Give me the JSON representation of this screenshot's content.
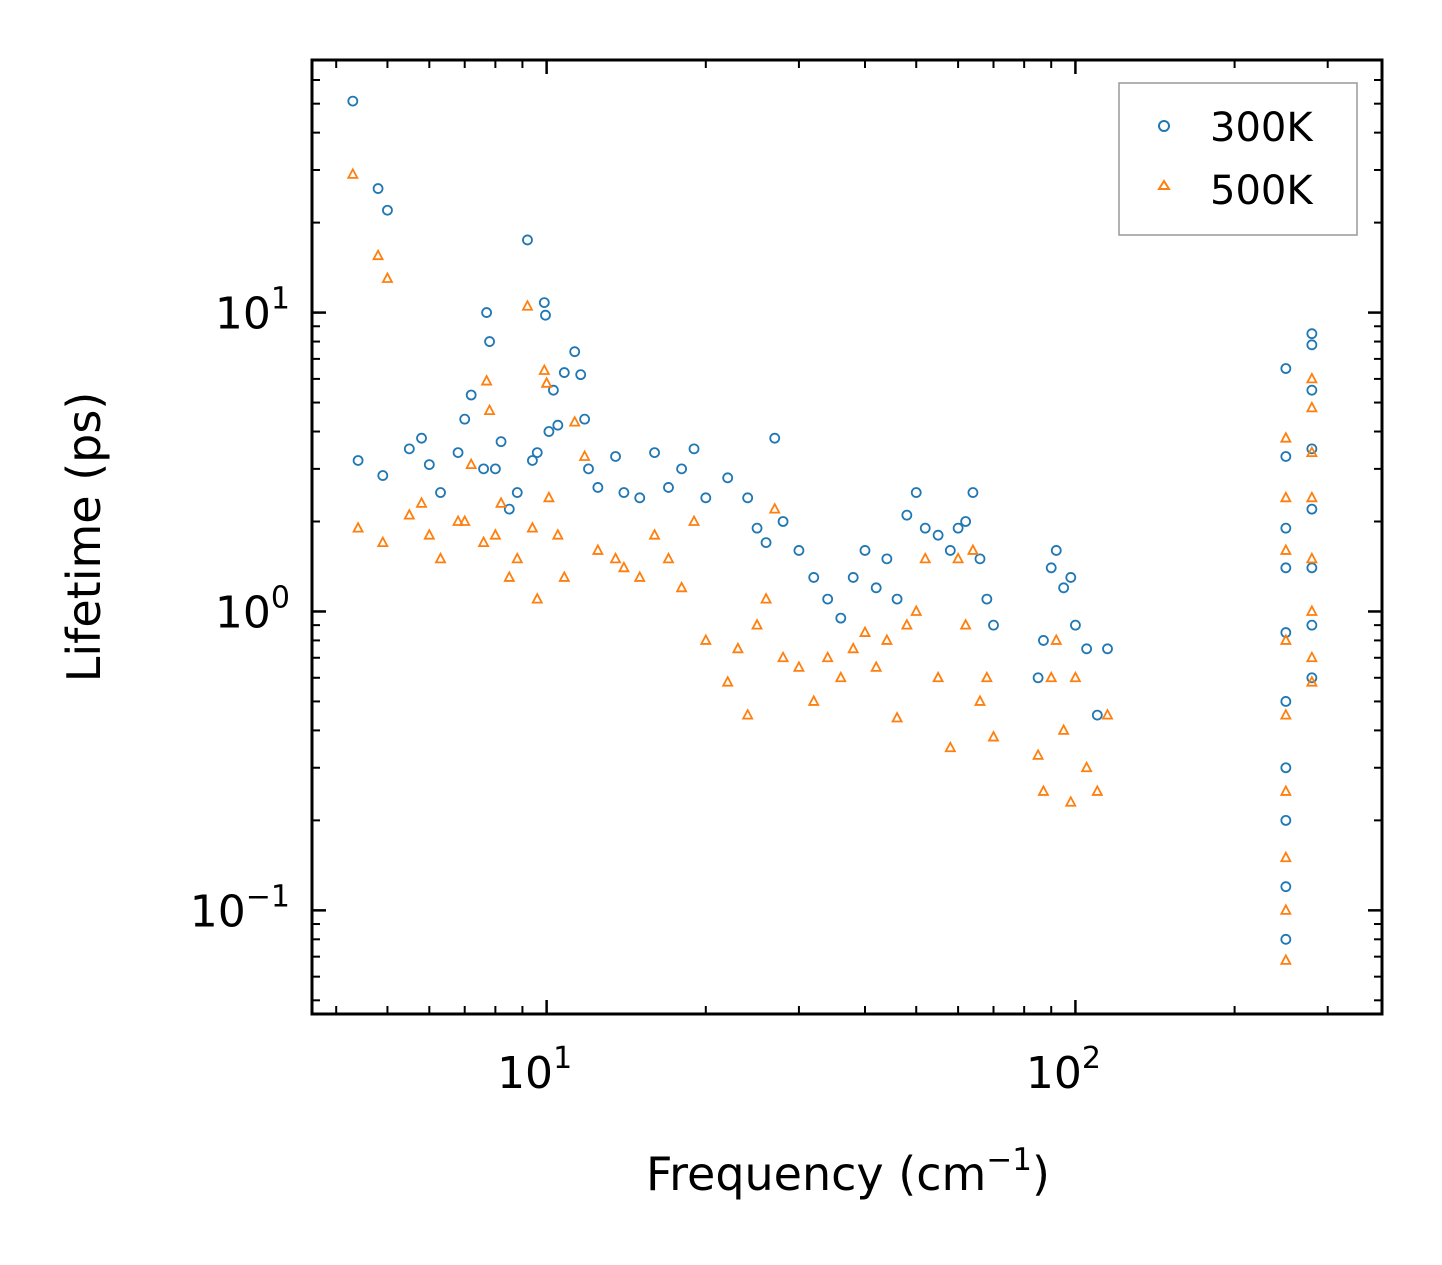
{
  "chart_data": {
    "type": "scatter",
    "xlabel": "Frequency (cm⁻¹)",
    "xlabel_base": "Frequency (cm",
    "xlabel_exp": "−1",
    "xlabel_tail": ")",
    "ylabel": "Lifetime (ps)",
    "xscale": "log",
    "yscale": "log",
    "xlim": [
      3.6,
      380
    ],
    "ylim": [
      0.045,
      70
    ],
    "xticks": [
      {
        "value": 10,
        "base": "10",
        "exp": "1"
      },
      {
        "value": 100,
        "base": "10",
        "exp": "2"
      }
    ],
    "yticks": [
      {
        "value": 0.1,
        "base": "10",
        "exp": "−1"
      },
      {
        "value": 1,
        "base": "10",
        "exp": "0"
      },
      {
        "value": 10,
        "base": "10",
        "exp": "1"
      }
    ],
    "legend_position": "top-right",
    "colors": {
      "300K": "#1f77b4",
      "500K": "#ff7f0e"
    },
    "series": [
      {
        "name": "300K",
        "marker": "circle",
        "color": "#1f77b4",
        "points": [
          [
            4.3,
            51
          ],
          [
            4.8,
            26
          ],
          [
            5.0,
            22
          ],
          [
            4.4,
            3.2
          ],
          [
            4.9,
            2.85
          ],
          [
            5.5,
            3.5
          ],
          [
            5.8,
            3.8
          ],
          [
            6.0,
            3.1
          ],
          [
            6.3,
            2.5
          ],
          [
            6.8,
            3.4
          ],
          [
            7.0,
            4.4
          ],
          [
            7.2,
            5.3
          ],
          [
            7.6,
            3.0
          ],
          [
            7.7,
            10
          ],
          [
            7.8,
            8
          ],
          [
            8.0,
            3.0
          ],
          [
            8.2,
            3.7
          ],
          [
            8.5,
            2.2
          ],
          [
            8.8,
            2.5
          ],
          [
            9.2,
            17.5
          ],
          [
            9.4,
            3.2
          ],
          [
            9.6,
            3.4
          ],
          [
            9.9,
            10.8
          ],
          [
            9.95,
            9.8
          ],
          [
            10.1,
            4.0
          ],
          [
            10.3,
            5.5
          ],
          [
            10.5,
            4.2
          ],
          [
            10.8,
            6.3
          ],
          [
            11.3,
            7.4
          ],
          [
            11.6,
            6.2
          ],
          [
            11.8,
            4.4
          ],
          [
            12.0,
            3.0
          ],
          [
            12.5,
            2.6
          ],
          [
            13.5,
            3.3
          ],
          [
            14.0,
            2.5
          ],
          [
            15.0,
            2.4
          ],
          [
            16.0,
            3.4
          ],
          [
            17.0,
            2.6
          ],
          [
            18.0,
            3.0
          ],
          [
            19.0,
            3.5
          ],
          [
            20.0,
            2.4
          ],
          [
            22.0,
            2.8
          ],
          [
            24.0,
            2.4
          ],
          [
            25.0,
            1.9
          ],
          [
            26.0,
            1.7
          ],
          [
            27.0,
            3.8
          ],
          [
            28.0,
            2.0
          ],
          [
            30.0,
            1.6
          ],
          [
            32.0,
            1.3
          ],
          [
            34.0,
            1.1
          ],
          [
            36.0,
            0.95
          ],
          [
            38.0,
            1.3
          ],
          [
            40.0,
            1.6
          ],
          [
            42.0,
            1.2
          ],
          [
            44.0,
            1.5
          ],
          [
            46.0,
            1.1
          ],
          [
            48.0,
            2.1
          ],
          [
            50.0,
            2.5
          ],
          [
            52.0,
            1.9
          ],
          [
            55.0,
            1.8
          ],
          [
            58.0,
            1.6
          ],
          [
            60.0,
            1.9
          ],
          [
            62.0,
            2.0
          ],
          [
            64.0,
            2.5
          ],
          [
            66.0,
            1.5
          ],
          [
            68.0,
            1.1
          ],
          [
            70.0,
            0.9
          ],
          [
            85.0,
            0.6
          ],
          [
            87.0,
            0.8
          ],
          [
            90.0,
            1.4
          ],
          [
            92.0,
            1.6
          ],
          [
            95.0,
            1.2
          ],
          [
            98.0,
            1.3
          ],
          [
            100.0,
            0.9
          ],
          [
            105.0,
            0.75
          ],
          [
            110.0,
            0.45
          ],
          [
            115.0,
            0.75
          ],
          [
            250.0,
            6.5
          ],
          [
            250.0,
            3.3
          ],
          [
            250.0,
            1.9
          ],
          [
            250.0,
            1.4
          ],
          [
            250.0,
            0.85
          ],
          [
            250.0,
            0.5
          ],
          [
            250.0,
            0.3
          ],
          [
            250.0,
            0.2
          ],
          [
            250.0,
            0.12
          ],
          [
            250.0,
            0.08
          ],
          [
            280.0,
            8.5
          ],
          [
            280.0,
            7.8
          ],
          [
            280.0,
            5.5
          ],
          [
            280.0,
            3.5
          ],
          [
            280.0,
            2.2
          ],
          [
            280.0,
            1.4
          ],
          [
            280.0,
            0.9
          ],
          [
            280.0,
            0.6
          ]
        ]
      },
      {
        "name": "500K",
        "marker": "triangle",
        "color": "#ff7f0e",
        "points": [
          [
            4.3,
            29
          ],
          [
            4.8,
            15.5
          ],
          [
            5.0,
            13
          ],
          [
            4.4,
            1.9
          ],
          [
            4.9,
            1.7
          ],
          [
            5.5,
            2.1
          ],
          [
            5.8,
            2.3
          ],
          [
            6.0,
            1.8
          ],
          [
            6.3,
            1.5
          ],
          [
            6.8,
            2.0
          ],
          [
            7.0,
            2.0
          ],
          [
            7.2,
            3.1
          ],
          [
            7.6,
            1.7
          ],
          [
            7.7,
            5.9
          ],
          [
            7.8,
            4.7
          ],
          [
            8.0,
            1.8
          ],
          [
            8.2,
            2.3
          ],
          [
            8.5,
            1.3
          ],
          [
            8.8,
            1.5
          ],
          [
            9.2,
            10.5
          ],
          [
            9.4,
            1.9
          ],
          [
            9.6,
            1.1
          ],
          [
            9.9,
            6.4
          ],
          [
            10.0,
            5.8
          ],
          [
            10.1,
            2.4
          ],
          [
            10.5,
            1.8
          ],
          [
            10.8,
            1.3
          ],
          [
            11.3,
            4.3
          ],
          [
            11.8,
            3.3
          ],
          [
            12.5,
            1.6
          ],
          [
            13.5,
            1.5
          ],
          [
            14.0,
            1.4
          ],
          [
            15.0,
            1.3
          ],
          [
            16.0,
            1.8
          ],
          [
            17.0,
            1.5
          ],
          [
            18.0,
            1.2
          ],
          [
            19.0,
            2.0
          ],
          [
            20.0,
            0.8
          ],
          [
            22.0,
            0.58
          ],
          [
            23.0,
            0.75
          ],
          [
            24.0,
            0.45
          ],
          [
            25.0,
            0.9
          ],
          [
            26.0,
            1.1
          ],
          [
            27.0,
            2.2
          ],
          [
            28.0,
            0.7
          ],
          [
            30.0,
            0.65
          ],
          [
            32.0,
            0.5
          ],
          [
            34.0,
            0.7
          ],
          [
            36.0,
            0.6
          ],
          [
            38.0,
            0.75
          ],
          [
            40.0,
            0.85
          ],
          [
            42.0,
            0.65
          ],
          [
            44.0,
            0.8
          ],
          [
            46.0,
            0.44
          ],
          [
            48.0,
            0.9
          ],
          [
            50.0,
            1.0
          ],
          [
            52.0,
            1.5
          ],
          [
            55.0,
            0.6
          ],
          [
            58.0,
            0.35
          ],
          [
            60.0,
            1.5
          ],
          [
            62.0,
            0.9
          ],
          [
            64.0,
            1.6
          ],
          [
            66.0,
            0.5
          ],
          [
            68.0,
            0.6
          ],
          [
            70.0,
            0.38
          ],
          [
            85.0,
            0.33
          ],
          [
            87.0,
            0.25
          ],
          [
            90.0,
            0.6
          ],
          [
            92.0,
            0.8
          ],
          [
            95.0,
            0.4
          ],
          [
            98.0,
            0.23
          ],
          [
            100.0,
            0.6
          ],
          [
            105.0,
            0.3
          ],
          [
            110.0,
            0.25
          ],
          [
            115.0,
            0.45
          ],
          [
            250.0,
            3.8
          ],
          [
            250.0,
            2.4
          ],
          [
            250.0,
            1.6
          ],
          [
            250.0,
            0.8
          ],
          [
            250.0,
            0.45
          ],
          [
            250.0,
            0.25
          ],
          [
            250.0,
            0.15
          ],
          [
            250.0,
            0.1
          ],
          [
            250.0,
            0.068
          ],
          [
            280.0,
            6.0
          ],
          [
            280.0,
            4.8
          ],
          [
            280.0,
            3.4
          ],
          [
            280.0,
            2.4
          ],
          [
            280.0,
            1.5
          ],
          [
            280.0,
            1.0
          ],
          [
            280.0,
            0.7
          ],
          [
            280.0,
            0.58
          ]
        ]
      }
    ]
  }
}
